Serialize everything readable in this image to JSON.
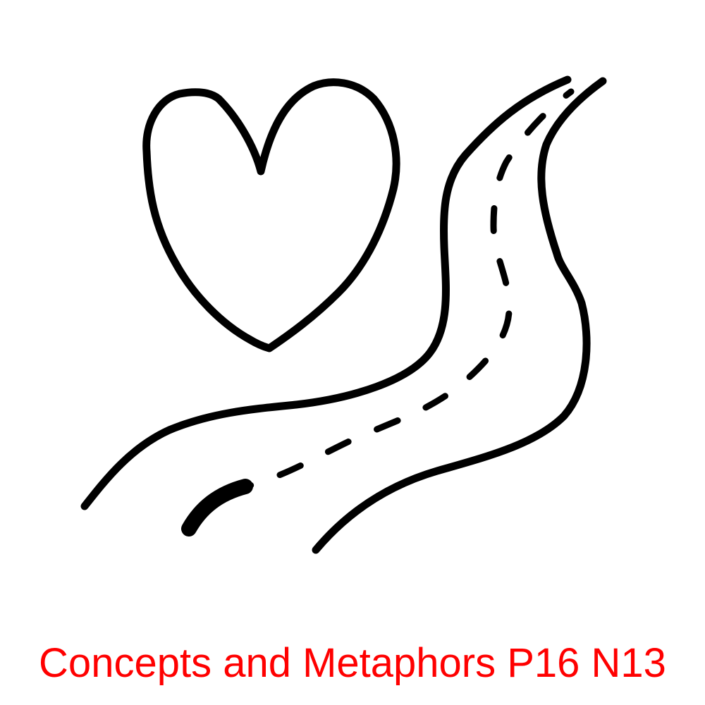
{
  "caption": {
    "text": "Concepts and Metaphors P16 N13",
    "color": "#ff0000"
  },
  "illustration": {
    "icons": [
      "heart-icon",
      "winding-road-icon"
    ],
    "stroke_color": "#000000"
  }
}
